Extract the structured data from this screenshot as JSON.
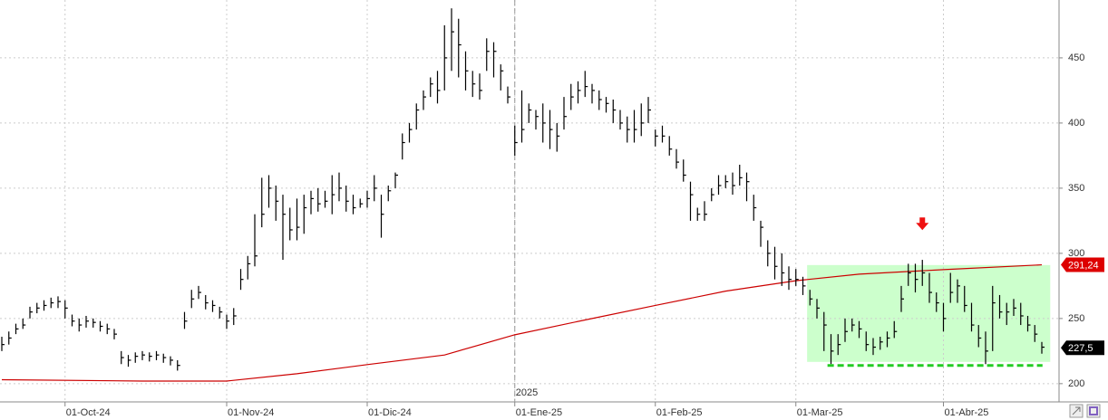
{
  "chart_data": {
    "type": "ohlc",
    "categories": [
      null,
      null,
      null,
      null,
      null,
      null,
      null,
      null,
      null,
      "01-Oct-24",
      null,
      null,
      null,
      null,
      null,
      null,
      null,
      null,
      null,
      null,
      null,
      null,
      null,
      null,
      null,
      null,
      null,
      null,
      null,
      null,
      null,
      null,
      "01-Nov-24",
      null,
      null,
      null,
      null,
      null,
      null,
      null,
      null,
      null,
      null,
      null,
      null,
      null,
      null,
      null,
      null,
      null,
      null,
      null,
      "01-Dic-24",
      null,
      null,
      null,
      null,
      null,
      null,
      null,
      null,
      null,
      null,
      null,
      null,
      null,
      null,
      null,
      null,
      null,
      null,
      null,
      null,
      "01-Ene-25",
      null,
      null,
      null,
      null,
      null,
      null,
      null,
      null,
      null,
      null,
      null,
      null,
      null,
      null,
      null,
      null,
      null,
      null,
      null,
      "01-Feb-25",
      null,
      null,
      null,
      null,
      null,
      null,
      null,
      null,
      null,
      null,
      null,
      null,
      null,
      null,
      null,
      null,
      null,
      null,
      null,
      "01-Mar-25",
      null,
      null,
      null,
      null,
      null,
      null,
      null,
      null,
      null,
      null,
      null,
      null,
      null,
      null,
      null,
      null,
      null,
      null,
      null,
      null,
      "01-Abr-25",
      null,
      null,
      null,
      null,
      null,
      null,
      null,
      null,
      null,
      null,
      null,
      null,
      null,
      null
    ],
    "high": [
      236,
      240,
      246,
      250,
      259,
      262,
      264,
      266,
      267,
      264,
      253,
      250,
      252,
      250,
      248,
      246,
      242,
      225,
      222,
      224,
      225,
      224,
      225,
      223,
      221,
      218,
      255,
      272,
      275,
      268,
      264,
      259,
      253,
      258,
      288,
      298,
      330,
      358,
      360,
      352,
      345,
      335,
      342,
      345,
      348,
      350,
      348,
      360,
      362,
      352,
      345,
      342,
      348,
      360,
      345,
      352,
      362,
      392,
      400,
      415,
      425,
      435,
      440,
      475,
      488,
      480,
      455,
      440,
      438,
      465,
      462,
      445,
      428,
      398,
      425,
      415,
      410,
      415,
      410,
      400,
      420,
      430,
      432,
      440,
      430,
      425,
      420,
      418,
      410,
      405,
      410,
      415,
      420,
      395,
      398,
      390,
      380,
      372,
      355,
      335,
      340,
      350,
      360,
      360,
      362,
      368,
      362,
      345,
      325,
      310,
      305,
      300,
      290,
      288,
      282,
      272,
      265,
      255,
      238,
      238,
      250,
      250,
      248,
      240,
      235,
      236,
      240,
      248,
      275,
      292,
      292,
      295,
      285,
      270,
      262,
      285,
      280,
      275,
      262,
      245,
      240,
      275,
      268,
      262,
      265,
      262,
      252,
      245,
      232
    ],
    "low": [
      225,
      230,
      238,
      242,
      250,
      254,
      256,
      258,
      258,
      250,
      244,
      240,
      243,
      243,
      240,
      238,
      234,
      215,
      213,
      216,
      218,
      217,
      218,
      216,
      214,
      210,
      242,
      258,
      265,
      257,
      255,
      250,
      242,
      245,
      272,
      280,
      290,
      320,
      335,
      325,
      295,
      310,
      310,
      315,
      330,
      332,
      335,
      330,
      340,
      332,
      330,
      335,
      335,
      340,
      312,
      340,
      350,
      372,
      385,
      395,
      410,
      420,
      415,
      425,
      440,
      435,
      425,
      420,
      418,
      440,
      435,
      425,
      415,
      375,
      385,
      400,
      395,
      385,
      380,
      378,
      395,
      410,
      415,
      420,
      415,
      410,
      408,
      400,
      395,
      385,
      385,
      390,
      400,
      382,
      385,
      375,
      365,
      355,
      325,
      325,
      325,
      340,
      345,
      350,
      345,
      352,
      340,
      325,
      305,
      290,
      280,
      275,
      272,
      275,
      268,
      260,
      250,
      225,
      215,
      222,
      232,
      240,
      235,
      225,
      222,
      226,
      228,
      235,
      255,
      275,
      270,
      275,
      262,
      255,
      240,
      262,
      262,
      255,
      240,
      228,
      215,
      225,
      250,
      245,
      252,
      245,
      240,
      232,
      223
    ],
    "close": [
      230,
      235,
      242,
      245,
      255,
      258,
      260,
      262,
      263,
      258,
      248,
      245,
      248,
      247,
      244,
      242,
      238,
      220,
      218,
      221,
      222,
      221,
      222,
      220,
      218,
      214,
      248,
      265,
      270,
      262,
      260,
      255,
      248,
      252,
      280,
      292,
      298,
      330,
      350,
      340,
      330,
      318,
      320,
      335,
      342,
      338,
      340,
      345,
      350,
      340,
      335,
      338,
      342,
      350,
      330,
      348,
      360,
      385,
      395,
      410,
      420,
      430,
      425,
      450,
      470,
      460,
      440,
      430,
      425,
      455,
      455,
      440,
      420,
      385,
      395,
      410,
      405,
      400,
      395,
      390,
      405,
      420,
      425,
      428,
      425,
      418,
      415,
      410,
      400,
      395,
      395,
      400,
      410,
      390,
      390,
      380,
      370,
      360,
      345,
      330,
      330,
      345,
      352,
      355,
      352,
      358,
      355,
      335,
      320,
      300,
      290,
      285,
      280,
      280,
      275,
      265,
      258,
      245,
      225,
      230,
      240,
      245,
      242,
      230,
      228,
      232,
      235,
      240,
      265,
      285,
      280,
      285,
      270,
      262,
      250,
      270,
      275,
      260,
      245,
      235,
      225,
      262,
      255,
      255,
      258,
      252,
      245,
      238,
      228
    ],
    "color": "#000000",
    "moving_average": {
      "x": [
        0,
        20,
        32,
        42,
        52,
        63,
        73,
        84,
        93,
        103,
        113,
        122,
        134,
        148
      ],
      "values": [
        203,
        202,
        202,
        207.6,
        214.6,
        222,
        237.5,
        250,
        260,
        271,
        279,
        284,
        287.5,
        291.2
      ],
      "color": "#cc0000"
    },
    "ylim": [
      186,
      494.4
    ],
    "yticks": [
      200,
      250,
      300,
      350,
      400,
      450
    ],
    "grid": true,
    "year_marker": {
      "x": 73,
      "label": "2025"
    },
    "price_labels": [
      {
        "value": 291.24,
        "label": "291,24",
        "color": "#dd0000"
      },
      {
        "value": 227.5,
        "label": "227,5",
        "color": "#000000"
      }
    ],
    "zone": {
      "x": [
        114.6,
        149.2
      ],
      "y": [
        216.7,
        291
      ],
      "color": "#ccffcc"
    },
    "support": {
      "x": [
        117.5,
        148.1
      ],
      "value": 214,
      "color": "#22cc22"
    },
    "arrow": {
      "x": 131,
      "value": 322,
      "color": "#ee1111"
    }
  }
}
